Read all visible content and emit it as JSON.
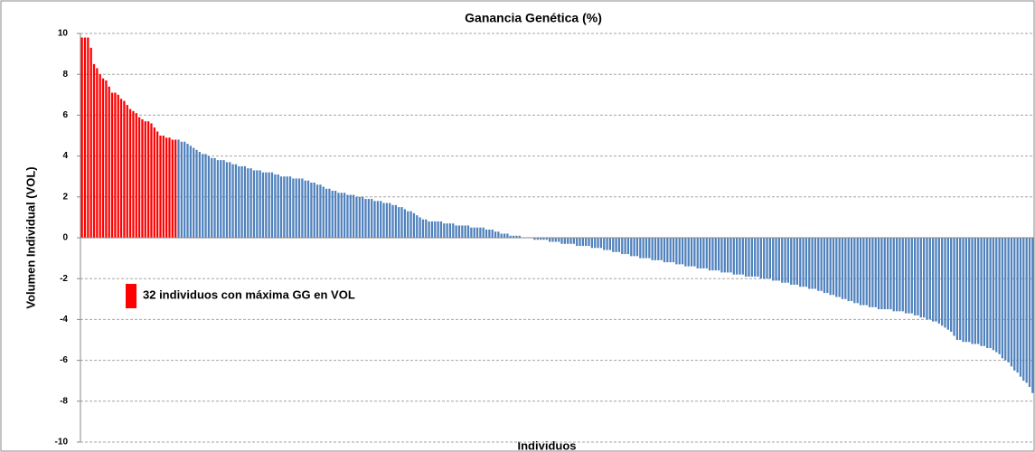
{
  "chart_data": {
    "type": "bar",
    "title": "Ganancia Genética (%)",
    "x_label": "Individuos",
    "y_label": "Volumen Individual (VOL)",
    "ylim": [
      -10,
      10
    ],
    "yticks": [
      -10,
      -8,
      -6,
      -4,
      -2,
      0,
      2,
      4,
      6,
      8,
      10
    ],
    "grid": true,
    "legend": "left",
    "series": [
      {
        "name": "32 individuos con máxima GG en VOL",
        "color": "#ff0000",
        "values": [
          9.8,
          9.8,
          9.8,
          9.3,
          8.5,
          8.3,
          8.0,
          7.8,
          7.7,
          7.4,
          7.1,
          7.1,
          7.0,
          6.8,
          6.7,
          6.5,
          6.3,
          6.2,
          6.1,
          5.9,
          5.8,
          5.7,
          5.7,
          5.6,
          5.4,
          5.2,
          5.0,
          5.0,
          4.9,
          4.9,
          4.8,
          4.8
        ]
      },
      {
        "color": "#4f81bd",
        "values": [
          4.8,
          4.7,
          4.7,
          4.6,
          4.5,
          4.4,
          4.3,
          4.2,
          4.1,
          4.1,
          4.0,
          3.9,
          3.9,
          3.8,
          3.8,
          3.8,
          3.7,
          3.7,
          3.6,
          3.6,
          3.5,
          3.5,
          3.5,
          3.4,
          3.4,
          3.3,
          3.3,
          3.3,
          3.2,
          3.2,
          3.2,
          3.2,
          3.1,
          3.1,
          3.0,
          3.0,
          3.0,
          3.0,
          2.9,
          2.9,
          2.9,
          2.9,
          2.8,
          2.8,
          2.7,
          2.7,
          2.6,
          2.6,
          2.5,
          2.4,
          2.4,
          2.3,
          2.3,
          2.2,
          2.2,
          2.2,
          2.1,
          2.1,
          2.1,
          2.0,
          2.0,
          2.0,
          1.9,
          1.9,
          1.9,
          1.8,
          1.8,
          1.8,
          1.7,
          1.7,
          1.7,
          1.6,
          1.6,
          1.5,
          1.5,
          1.4,
          1.3,
          1.3,
          1.2,
          1.1,
          1.0,
          0.9,
          0.9,
          0.8,
          0.8,
          0.8,
          0.8,
          0.8,
          0.7,
          0.7,
          0.7,
          0.7,
          0.6,
          0.6,
          0.6,
          0.6,
          0.6,
          0.5,
          0.5,
          0.5,
          0.5,
          0.5,
          0.4,
          0.4,
          0.4,
          0.3,
          0.3,
          0.2,
          0.2,
          0.2,
          0.1,
          0.1,
          0.1,
          0.1,
          0.0,
          0.0,
          0.0,
          0.0,
          -0.1,
          -0.1,
          -0.1,
          -0.1,
          -0.1,
          -0.2,
          -0.2,
          -0.2,
          -0.2,
          -0.3,
          -0.3,
          -0.3,
          -0.3,
          -0.3,
          -0.4,
          -0.4,
          -0.4,
          -0.4,
          -0.4,
          -0.5,
          -0.5,
          -0.5,
          -0.5,
          -0.6,
          -0.6,
          -0.6,
          -0.7,
          -0.7,
          -0.7,
          -0.8,
          -0.8,
          -0.8,
          -0.9,
          -0.9,
          -0.9,
          -1.0,
          -1.0,
          -1.0,
          -1.0,
          -1.1,
          -1.1,
          -1.1,
          -1.1,
          -1.2,
          -1.2,
          -1.2,
          -1.2,
          -1.3,
          -1.3,
          -1.3,
          -1.4,
          -1.4,
          -1.4,
          -1.4,
          -1.5,
          -1.5,
          -1.5,
          -1.5,
          -1.6,
          -1.6,
          -1.6,
          -1.6,
          -1.7,
          -1.7,
          -1.7,
          -1.7,
          -1.8,
          -1.8,
          -1.8,
          -1.8,
          -1.9,
          -1.9,
          -1.9,
          -1.9,
          -1.9,
          -2.0,
          -2.0,
          -2.0,
          -2.0,
          -2.1,
          -2.1,
          -2.1,
          -2.2,
          -2.2,
          -2.2,
          -2.3,
          -2.3,
          -2.3,
          -2.4,
          -2.4,
          -2.4,
          -2.5,
          -2.5,
          -2.5,
          -2.6,
          -2.6,
          -2.7,
          -2.7,
          -2.8,
          -2.8,
          -2.9,
          -2.9,
          -3.0,
          -3.0,
          -3.1,
          -3.1,
          -3.2,
          -3.2,
          -3.3,
          -3.3,
          -3.3,
          -3.4,
          -3.4,
          -3.4,
          -3.5,
          -3.5,
          -3.5,
          -3.5,
          -3.5,
          -3.6,
          -3.6,
          -3.6,
          -3.6,
          -3.7,
          -3.7,
          -3.7,
          -3.8,
          -3.8,
          -3.9,
          -3.9,
          -4.0,
          -4.0,
          -4.1,
          -4.1,
          -4.2,
          -4.3,
          -4.4,
          -4.5,
          -4.6,
          -4.8,
          -5.0,
          -5.0,
          -5.1,
          -5.1,
          -5.1,
          -5.2,
          -5.2,
          -5.2,
          -5.3,
          -5.3,
          -5.4,
          -5.4,
          -5.5,
          -5.6,
          -5.7,
          -5.9,
          -6.0,
          -6.1,
          -6.3,
          -6.5,
          -6.6,
          -6.8,
          -7.0,
          -7.1,
          -7.3,
          -7.6
        ]
      }
    ]
  }
}
